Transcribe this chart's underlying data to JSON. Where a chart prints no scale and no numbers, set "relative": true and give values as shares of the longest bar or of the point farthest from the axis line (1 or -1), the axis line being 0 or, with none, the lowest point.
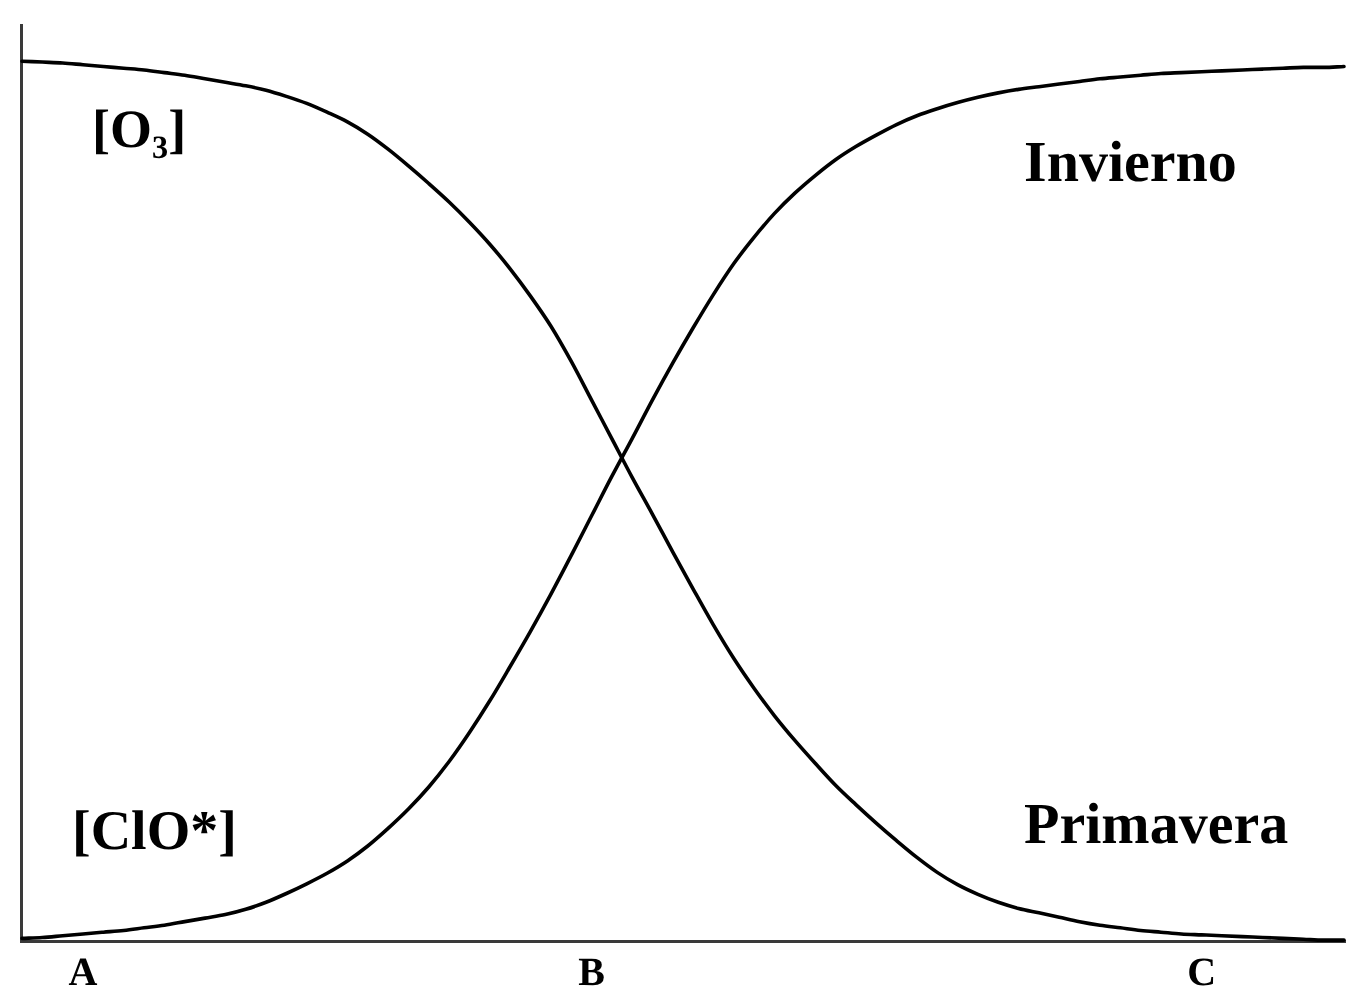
{
  "chart_data": {
    "type": "line",
    "relative": true,
    "tick_labels": "x",
    "categories": [
      null,
      null,
      null,
      "A",
      null,
      null,
      null,
      null,
      null,
      null,
      null,
      null,
      null,
      null,
      null,
      null,
      null,
      null,
      null,
      null,
      null,
      null,
      null,
      null,
      null,
      null,
      null,
      null,
      "B",
      null,
      null,
      null,
      null,
      null,
      null,
      null,
      null,
      null,
      null,
      null,
      null,
      null,
      null,
      null,
      null,
      null,
      null,
      null,
      null,
      null,
      null,
      null,
      null,
      null,
      null,
      null,
      null,
      null,
      "C",
      null,
      null,
      null,
      null,
      null,
      null,
      null
    ],
    "series": [
      {
        "name": "[O₃]",
        "color": "#000000",
        "values": [
          1,
          0.999,
          0.998,
          0.996,
          0.994,
          0.992,
          0.99,
          0.987,
          0.984,
          0.98,
          0.976,
          0.972,
          0.967,
          0.96,
          0.952,
          0.942,
          0.931,
          0.917,
          0.9,
          0.881,
          0.861,
          0.84,
          0.817,
          0.792,
          0.764,
          0.733,
          0.699,
          0.659,
          0.615,
          0.571,
          0.527,
          0.485,
          0.442,
          0.4,
          0.359,
          0.321,
          0.287,
          0.256,
          0.228,
          0.202,
          0.177,
          0.155,
          0.134,
          0.114,
          0.095,
          0.078,
          0.064,
          0.053,
          0.044,
          0.037,
          0.032,
          0.027,
          0.022,
          0.018,
          0.015,
          0.012,
          0.01,
          0.008,
          0.007,
          0.006,
          0.005,
          0.004,
          0.003,
          0.002,
          0.001,
          0.001
        ]
      },
      {
        "name": "[ClO*]",
        "color": "#000000",
        "values": [
          0.003,
          0.004,
          0.006,
          0.008,
          0.01,
          0.012,
          0.015,
          0.018,
          0.022,
          0.026,
          0.03,
          0.036,
          0.044,
          0.054,
          0.065,
          0.077,
          0.091,
          0.108,
          0.128,
          0.15,
          0.175,
          0.204,
          0.237,
          0.273,
          0.312,
          0.352,
          0.394,
          0.438,
          0.483,
          0.528,
          0.571,
          0.615,
          0.657,
          0.697,
          0.735,
          0.77,
          0.8,
          0.827,
          0.85,
          0.87,
          0.888,
          0.903,
          0.916,
          0.928,
          0.938,
          0.946,
          0.953,
          0.959,
          0.964,
          0.968,
          0.971,
          0.974,
          0.977,
          0.98,
          0.982,
          0.984,
          0.986,
          0.987,
          0.988,
          0.989,
          0.99,
          0.991,
          0.992,
          0.993,
          0.993,
          0.994
        ]
      }
    ],
    "annotations": [
      "Invierno",
      "Primavera"
    ]
  }
}
